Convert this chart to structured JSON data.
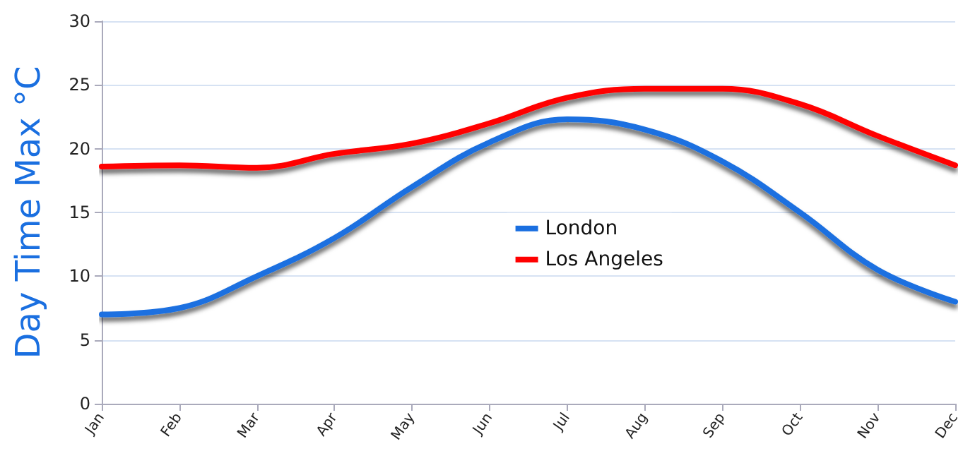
{
  "chart_data": {
    "type": "line",
    "ylabel": "Day Time Max °C",
    "categories": [
      "Jan",
      "Feb",
      "Mar",
      "Apr",
      "May",
      "Jun",
      "Jul",
      "Aug",
      "Sep",
      "Oct",
      "Nov",
      "Dec"
    ],
    "series": [
      {
        "name": "London",
        "color": "#1a6fe0",
        "values": [
          7,
          7.5,
          10,
          13,
          17,
          20.5,
          22.3,
          21.5,
          19,
          15,
          10.5,
          8
        ]
      },
      {
        "name": "Los Angeles",
        "color": "#ff0000",
        "values": [
          18.6,
          18.7,
          18.5,
          19.6,
          20.4,
          22,
          24,
          24.7,
          24.7,
          23.5,
          21,
          18.7
        ]
      }
    ],
    "ylim": [
      0,
      30
    ],
    "yticks": [
      0,
      5,
      10,
      15,
      20,
      25,
      30
    ],
    "grid": "y",
    "legend": "center",
    "marker": "none",
    "line_style": "solid"
  }
}
